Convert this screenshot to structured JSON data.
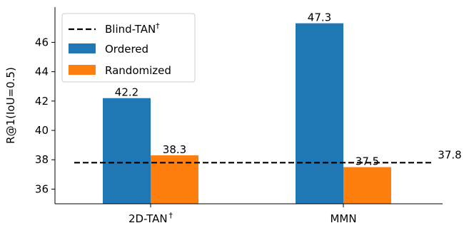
{
  "chart_data": {
    "type": "bar",
    "categories": [
      "2D-TAN",
      "MMN"
    ],
    "category_superscripts": [
      "†",
      ""
    ],
    "series": [
      {
        "name": "Ordered",
        "values": [
          42.2,
          47.3
        ],
        "color": "#1f77b4"
      },
      {
        "name": "Randomized",
        "values": [
          38.3,
          37.5
        ],
        "color": "#ff7f0e"
      }
    ],
    "reference_line": {
      "name": "Blind-TAN",
      "superscript": "†",
      "value": 37.8,
      "style": "dashed",
      "color": "#000000"
    },
    "data_labels": {
      "Ordered": [
        "42.2",
        "47.3"
      ],
      "Randomized": [
        "38.3",
        "37.5"
      ],
      "reference": "37.8"
    },
    "xlabel": "",
    "ylabel": "R@1(IoU=0.5)",
    "ylim": [
      35,
      48.4
    ],
    "yticks": [
      36,
      38,
      40,
      42,
      44,
      46
    ],
    "grid": false,
    "legend_position": "top-left"
  }
}
